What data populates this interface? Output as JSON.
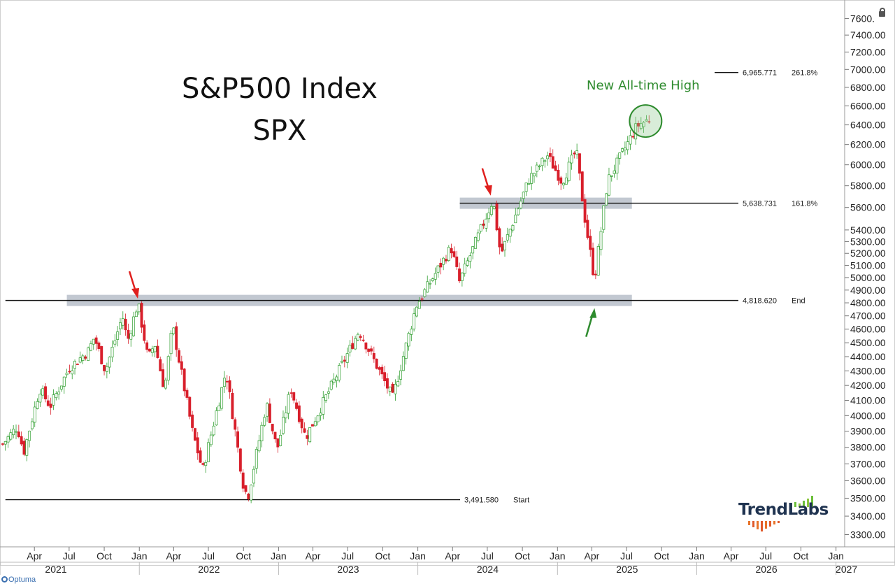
{
  "title_line1": "S&P500 Index",
  "title_line2": "SPX",
  "annotation": "New All-time High",
  "brand": "TrendLabs",
  "footer": "Optuma",
  "colors": {
    "up": "#2e9e2e",
    "down": "#d81f2b",
    "zone": "#9aa3b2",
    "highlight": "#2e8b2e"
  },
  "chart_data": {
    "type": "candlestick",
    "title": "S&P500 Index SPX",
    "y_axis": {
      "scale": "log",
      "range": [
        3250,
        7700
      ],
      "ticks": [
        3300,
        3400,
        3500,
        3600,
        3700,
        3800,
        3900,
        4000,
        4100,
        4200,
        4300,
        4400,
        4500,
        4600,
        4700,
        4800,
        4900,
        5000,
        5100,
        5200,
        5300,
        5400,
        5600,
        5800,
        6000,
        6200,
        6400,
        6600,
        6800,
        7000,
        7200,
        7400,
        7600
      ],
      "tick_labels": [
        "3300.00",
        "3400.00",
        "3500.00",
        "3600.00",
        "3700.00",
        "3800.00",
        "3900.00",
        "4000.00",
        "4100.00",
        "4200.00",
        "4300.00",
        "4400.00",
        "4500.00",
        "4600.00",
        "4700.00",
        "4800.00",
        "4900.00",
        "5000.00",
        "5100.00",
        "5200.00",
        "5300.00",
        "5400.00",
        "5600.00",
        "5800.00",
        "6000.00",
        "6200.00",
        "6400.00",
        "6600.00",
        "6800.00",
        "7000.00",
        "7200.00",
        "7400.00",
        "7600."
      ]
    },
    "x_axis": {
      "range": [
        "2021-01-10",
        "2027-01-20"
      ],
      "month_ticks": [
        {
          "date": "2021-04-01",
          "label": "Apr"
        },
        {
          "date": "2021-07-01",
          "label": "Jul"
        },
        {
          "date": "2021-10-01",
          "label": "Oct"
        },
        {
          "date": "2022-01-01",
          "label": "Jan"
        },
        {
          "date": "2022-04-01",
          "label": "Apr"
        },
        {
          "date": "2022-07-01",
          "label": "Jul"
        },
        {
          "date": "2022-10-01",
          "label": "Oct"
        },
        {
          "date": "2023-01-01",
          "label": "Jan"
        },
        {
          "date": "2023-04-01",
          "label": "Apr"
        },
        {
          "date": "2023-07-01",
          "label": "Jul"
        },
        {
          "date": "2023-10-01",
          "label": "Oct"
        },
        {
          "date": "2024-01-01",
          "label": "Jan"
        },
        {
          "date": "2024-04-01",
          "label": "Apr"
        },
        {
          "date": "2024-07-01",
          "label": "Jul"
        },
        {
          "date": "2024-10-01",
          "label": "Oct"
        },
        {
          "date": "2025-01-01",
          "label": "Jan"
        },
        {
          "date": "2025-04-01",
          "label": "Apr"
        },
        {
          "date": "2025-07-01",
          "label": "Jul"
        },
        {
          "date": "2025-10-01",
          "label": "Oct"
        },
        {
          "date": "2026-01-01",
          "label": "Jan"
        },
        {
          "date": "2026-04-01",
          "label": "Apr"
        },
        {
          "date": "2026-07-01",
          "label": "Jul"
        },
        {
          "date": "2026-10-01",
          "label": "Oct"
        },
        {
          "date": "2027-01-01",
          "label": "Jan"
        }
      ],
      "year_labels": [
        {
          "date": "2021-01-01",
          "label": "2021"
        },
        {
          "date": "2022-01-01",
          "label": "2022"
        },
        {
          "date": "2023-01-01",
          "label": "2023"
        },
        {
          "date": "2024-01-01",
          "label": "2024"
        },
        {
          "date": "2025-01-01",
          "label": "2025"
        },
        {
          "date": "2026-01-01",
          "label": "2026"
        },
        {
          "date": "2027-01-01",
          "label": "2027"
        }
      ]
    },
    "series_close_anchors": [
      [
        "2021-01-08",
        3820
      ],
      [
        "2021-02-15",
        3930
      ],
      [
        "2021-03-04",
        3770
      ],
      [
        "2021-04-15",
        4180
      ],
      [
        "2021-05-12",
        4060
      ],
      [
        "2021-07-01",
        4320
      ],
      [
        "2021-08-20",
        4440
      ],
      [
        "2021-09-05",
        4540
      ],
      [
        "2021-10-04",
        4300
      ],
      [
        "2021-11-18",
        4700
      ],
      [
        "2021-12-01",
        4510
      ],
      [
        "2021-12-28",
        4800
      ],
      [
        "2022-01-24",
        4380
      ],
      [
        "2022-02-10",
        4500
      ],
      [
        "2022-03-08",
        4170
      ],
      [
        "2022-03-29",
        4630
      ],
      [
        "2022-05-20",
        3900
      ],
      [
        "2022-06-16",
        3660
      ],
      [
        "2022-08-16",
        4300
      ],
      [
        "2022-09-30",
        3585
      ],
      [
        "2022-10-12",
        3500
      ],
      [
        "2022-11-30",
        4080
      ],
      [
        "2022-12-28",
        3785
      ],
      [
        "2023-02-02",
        4180
      ],
      [
        "2023-03-13",
        3860
      ],
      [
        "2023-07-31",
        4590
      ],
      [
        "2023-10-27",
        4117
      ],
      [
        "2023-12-28",
        4780
      ],
      [
        "2024-03-28",
        5250
      ],
      [
        "2024-04-19",
        4967
      ],
      [
        "2024-07-16",
        5670
      ],
      [
        "2024-08-05",
        5186
      ],
      [
        "2024-10-18",
        5860
      ],
      [
        "2024-12-06",
        6090
      ],
      [
        "2025-01-13",
        5836
      ],
      [
        "2025-02-19",
        6144
      ],
      [
        "2025-03-13",
        5520
      ],
      [
        "2025-04-08",
        4982
      ],
      [
        "2025-05-12",
        5844
      ],
      [
        "2025-07-28",
        6389
      ],
      [
        "2025-08-29",
        6460
      ]
    ],
    "horizontal_levels": [
      {
        "value": 6965.771,
        "value_label": "6,965.771",
        "tag": "261.8%"
      },
      {
        "value": 5638.731,
        "value_label": "5,638.731",
        "tag": "161.8%"
      },
      {
        "value": 4818.62,
        "value_label": "4,818.620",
        "tag": "End"
      },
      {
        "value": 3491.58,
        "value_label": "3,491.580",
        "tag": "Start"
      }
    ],
    "zones": [
      {
        "center": 4818.62,
        "from": "2021-06-25",
        "to": "2025-07-15"
      },
      {
        "center": 5638.73,
        "from": "2024-04-20",
        "to": "2025-07-15"
      }
    ],
    "arrows": [
      {
        "date": "2021-12-28",
        "value": 4800,
        "direction": "down",
        "color": "red"
      },
      {
        "date": "2024-07-10",
        "value": 5670,
        "direction": "down",
        "color": "red"
      },
      {
        "date": "2025-04-08",
        "value": 4835,
        "direction": "up",
        "color": "green"
      }
    ],
    "highlight_circle": {
      "date": "2025-08-20",
      "value": 6440
    }
  }
}
